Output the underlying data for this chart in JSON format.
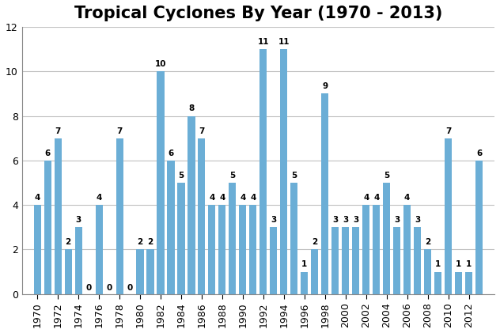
{
  "title": "Tropical Cyclones By Year (1970 - 2013)",
  "years": [
    1970,
    1971,
    1972,
    1973,
    1974,
    1975,
    1976,
    1977,
    1978,
    1979,
    1980,
    1981,
    1982,
    1983,
    1984,
    1985,
    1986,
    1987,
    1988,
    1989,
    1990,
    1991,
    1992,
    1993,
    1994,
    1995,
    1996,
    1997,
    1998,
    1999,
    2000,
    2001,
    2002,
    2003,
    2004,
    2005,
    2006,
    2007,
    2008,
    2009,
    2010,
    2011,
    2012,
    2013
  ],
  "values": [
    4,
    6,
    7,
    2,
    3,
    0,
    4,
    0,
    7,
    0,
    2,
    2,
    10,
    6,
    5,
    8,
    7,
    4,
    4,
    5,
    4,
    4,
    11,
    3,
    11,
    5,
    1,
    2,
    9,
    3,
    3,
    3,
    4,
    4,
    5,
    3,
    4,
    3,
    2,
    1,
    7,
    1,
    1,
    6
  ],
  "bar_color": "#6baed6",
  "ylim": [
    0,
    12
  ],
  "yticks": [
    0,
    2,
    4,
    6,
    8,
    10,
    12
  ],
  "xtick_years": [
    1970,
    1972,
    1974,
    1976,
    1978,
    1980,
    1982,
    1984,
    1986,
    1988,
    1990,
    1992,
    1994,
    1996,
    1998,
    2000,
    2002,
    2004,
    2006,
    2008,
    2010,
    2012
  ],
  "title_fontsize": 15,
  "label_fontsize": 7.5,
  "background_color": "#ffffff",
  "grid_color": "#c0c0c0",
  "bar_width": 0.7,
  "xlim_left": 1968.5,
  "xlim_right": 2014.5
}
